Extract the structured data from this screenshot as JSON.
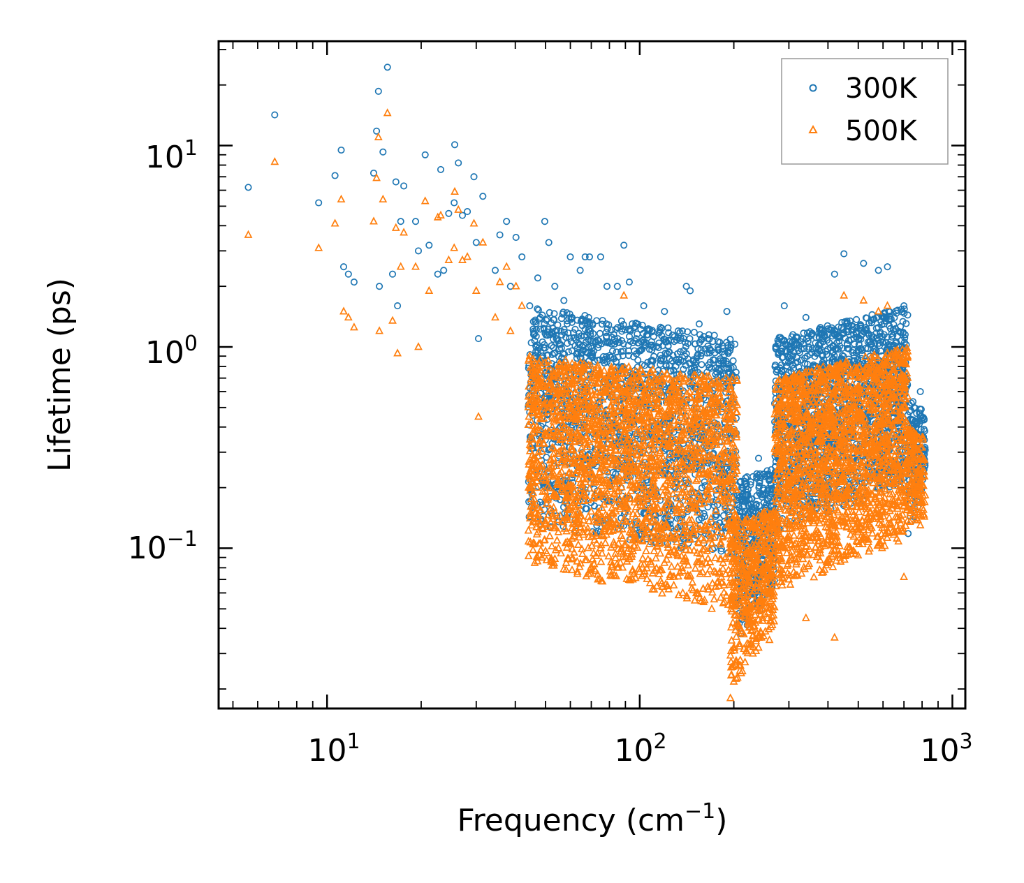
{
  "chart_data": {
    "type": "scatter",
    "xscale": "log",
    "yscale": "log",
    "xlabel": "Frequency (cm",
    "xlabel_sup": "−1",
    "xlabel_end": ")",
    "ylabel": "Lifetime (ps)",
    "xlim": [
      4.5,
      1100
    ],
    "ylim": [
      0.016,
      33
    ],
    "xticks": [
      {
        "value": 10,
        "base": "10",
        "exp": "1"
      },
      {
        "value": 100,
        "base": "10",
        "exp": "2"
      },
      {
        "value": 1000,
        "base": "10",
        "exp": "3"
      }
    ],
    "yticks": [
      {
        "value": 0.1,
        "base": "10",
        "exp": "−1"
      },
      {
        "value": 1,
        "base": "10",
        "exp": "0"
      },
      {
        "value": 10,
        "base": "10",
        "exp": "1"
      }
    ],
    "legend_position": "top-right",
    "series": [
      {
        "name": "300K",
        "marker": "circle",
        "color": "#1f77b4",
        "points": [
          [
            5.6,
            6.2
          ],
          [
            6.8,
            14.2
          ],
          [
            9.4,
            5.2
          ],
          [
            10.6,
            7.1
          ],
          [
            11.1,
            9.5
          ],
          [
            11.3,
            2.5
          ],
          [
            11.7,
            2.3
          ],
          [
            12.2,
            2.1
          ],
          [
            14.1,
            7.3
          ],
          [
            14.4,
            11.8
          ],
          [
            14.6,
            18.6
          ],
          [
            14.7,
            2.0
          ],
          [
            15.1,
            9.3
          ],
          [
            15.6,
            24.5
          ],
          [
            16.2,
            2.3
          ],
          [
            16.6,
            6.6
          ],
          [
            16.8,
            1.6
          ],
          [
            17.2,
            4.2
          ],
          [
            17.6,
            6.3
          ],
          [
            19.2,
            4.2
          ],
          [
            19.6,
            3.0
          ],
          [
            20.6,
            9.0
          ],
          [
            21.2,
            3.2
          ],
          [
            22.6,
            2.3
          ],
          [
            23.1,
            7.6
          ],
          [
            23.6,
            2.4
          ],
          [
            24.5,
            4.6
          ],
          [
            25.5,
            5.2
          ],
          [
            25.6,
            10.1
          ],
          [
            26.3,
            8.2
          ],
          [
            27.1,
            4.5
          ],
          [
            28.1,
            4.7
          ],
          [
            29.5,
            7.0
          ],
          [
            30.0,
            3.3
          ],
          [
            30.5,
            1.1
          ],
          [
            31.5,
            5.6
          ],
          [
            34.5,
            2.4
          ],
          [
            35.7,
            3.6
          ],
          [
            37.5,
            4.2
          ],
          [
            38.6,
            2.0
          ],
          [
            40.2,
            3.5
          ],
          [
            42.0,
            2.8
          ],
          [
            44.5,
            1.6
          ],
          [
            47.2,
            2.2
          ],
          [
            49.7,
            4.2
          ],
          [
            51.2,
            3.3
          ],
          [
            53.5,
            2.0
          ],
          [
            57.2,
            1.7
          ],
          [
            60.0,
            2.8
          ],
          [
            64.5,
            2.4
          ],
          [
            66.9,
            2.8
          ],
          [
            69.1,
            2.8
          ],
          [
            75.0,
            2.8
          ],
          [
            78.6,
            2.0
          ],
          [
            84.8,
            2.0
          ],
          [
            89.0,
            3.2
          ],
          [
            92.6,
            2.1
          ],
          [
            103.0,
            1.6
          ],
          [
            120.0,
            1.5
          ],
          [
            137.0,
            1.2
          ],
          [
            141.0,
            2.0
          ],
          [
            145.0,
            1.9
          ],
          [
            155.0,
            1.3
          ],
          [
            165.0,
            1.1
          ],
          [
            190.0,
            1.5
          ],
          [
            240.0,
            0.28
          ],
          [
            290.0,
            1.6
          ],
          [
            340.0,
            1.4
          ],
          [
            420.0,
            2.3
          ],
          [
            450.0,
            2.9
          ],
          [
            520.0,
            2.6
          ],
          [
            580.0,
            2.4
          ],
          [
            620.0,
            2.5
          ],
          [
            700.0,
            1.6
          ],
          [
            790.0,
            0.6
          ]
        ]
      },
      {
        "name": "500K",
        "marker": "triangle",
        "color": "#ff7f0e",
        "points": [
          [
            5.6,
            3.6
          ],
          [
            6.8,
            8.3
          ],
          [
            9.4,
            3.1
          ],
          [
            10.6,
            4.1
          ],
          [
            11.1,
            5.4
          ],
          [
            11.3,
            1.5
          ],
          [
            11.7,
            1.4
          ],
          [
            12.2,
            1.25
          ],
          [
            14.1,
            4.2
          ],
          [
            14.4,
            6.9
          ],
          [
            14.6,
            11.0
          ],
          [
            14.7,
            1.2
          ],
          [
            15.1,
            5.4
          ],
          [
            15.6,
            14.5
          ],
          [
            16.2,
            1.35
          ],
          [
            16.6,
            3.9
          ],
          [
            16.8,
            0.93
          ],
          [
            17.2,
            2.5
          ],
          [
            17.6,
            3.7
          ],
          [
            19.2,
            2.5
          ],
          [
            19.6,
            1.0
          ],
          [
            20.6,
            5.3
          ],
          [
            21.2,
            1.9
          ],
          [
            22.6,
            4.4
          ],
          [
            23.1,
            4.5
          ],
          [
            24.5,
            2.7
          ],
          [
            25.5,
            3.1
          ],
          [
            25.6,
            5.9
          ],
          [
            26.3,
            4.8
          ],
          [
            27.1,
            2.7
          ],
          [
            28.1,
            2.8
          ],
          [
            29.5,
            4.1
          ],
          [
            30.0,
            1.9
          ],
          [
            30.5,
            0.45
          ],
          [
            31.5,
            3.3
          ],
          [
            34.5,
            1.4
          ],
          [
            35.7,
            2.1
          ],
          [
            37.5,
            2.5
          ],
          [
            38.6,
            1.2
          ],
          [
            40.2,
            2.0
          ],
          [
            42.0,
            1.6
          ],
          [
            44.5,
            0.9
          ],
          [
            47.2,
            0.12
          ],
          [
            49.7,
            0.11
          ],
          [
            55.0,
            0.1
          ],
          [
            62.0,
            0.12
          ],
          [
            75.0,
            0.1
          ],
          [
            84.8,
            0.08
          ],
          [
            89.0,
            1.8
          ],
          [
            95.0,
            0.07
          ],
          [
            110.0,
            0.075
          ],
          [
            125.0,
            0.072
          ],
          [
            150.0,
            0.055
          ],
          [
            170.0,
            0.05
          ],
          [
            195.0,
            0.018
          ],
          [
            230.0,
            0.03
          ],
          [
            260.0,
            0.035
          ],
          [
            300.0,
            0.07
          ],
          [
            340.0,
            0.045
          ],
          [
            420.0,
            0.036
          ],
          [
            450.0,
            1.8
          ],
          [
            520.0,
            1.7
          ],
          [
            580.0,
            1.5
          ],
          [
            620.0,
            1.6
          ],
          [
            700.0,
            0.072
          ],
          [
            790.0,
            0.13
          ]
        ]
      }
    ],
    "dense_bands": [
      {
        "series": "300K",
        "xmin": 44,
        "xmax": 205,
        "ylo_start": 0.13,
        "ylo_end": 0.09,
        "yhi_start": 1.6,
        "yhi_end": 1.1,
        "count": 1700
      },
      {
        "series": "300K",
        "xmin": 205,
        "xmax": 270,
        "ylo_start": 0.035,
        "ylo_end": 0.06,
        "yhi_start": 0.22,
        "yhi_end": 0.25,
        "count": 350
      },
      {
        "series": "300K",
        "xmin": 270,
        "xmax": 720,
        "ylo_start": 0.12,
        "ylo_end": 0.2,
        "yhi_start": 1.1,
        "yhi_end": 1.6,
        "count": 1500
      },
      {
        "series": "300K",
        "xmin": 720,
        "xmax": 820,
        "ylo_start": 0.11,
        "ylo_end": 0.2,
        "yhi_start": 0.55,
        "yhi_end": 0.5,
        "count": 150
      },
      {
        "series": "500K",
        "xmin": 44,
        "xmax": 205,
        "ylo_start": 0.08,
        "ylo_end": 0.05,
        "yhi_start": 0.9,
        "yhi_end": 0.7,
        "count": 2200
      },
      {
        "series": "500K",
        "xmin": 195,
        "xmax": 270,
        "ylo_start": 0.02,
        "ylo_end": 0.04,
        "yhi_start": 0.13,
        "yhi_end": 0.16,
        "count": 450
      },
      {
        "series": "500K",
        "xmin": 270,
        "xmax": 720,
        "ylo_start": 0.06,
        "ylo_end": 0.11,
        "yhi_start": 0.7,
        "yhi_end": 1.0,
        "count": 1900
      },
      {
        "series": "500K",
        "xmin": 720,
        "xmax": 820,
        "ylo_start": 0.13,
        "ylo_end": 0.14,
        "yhi_start": 0.4,
        "yhi_end": 0.35,
        "count": 150
      }
    ]
  }
}
